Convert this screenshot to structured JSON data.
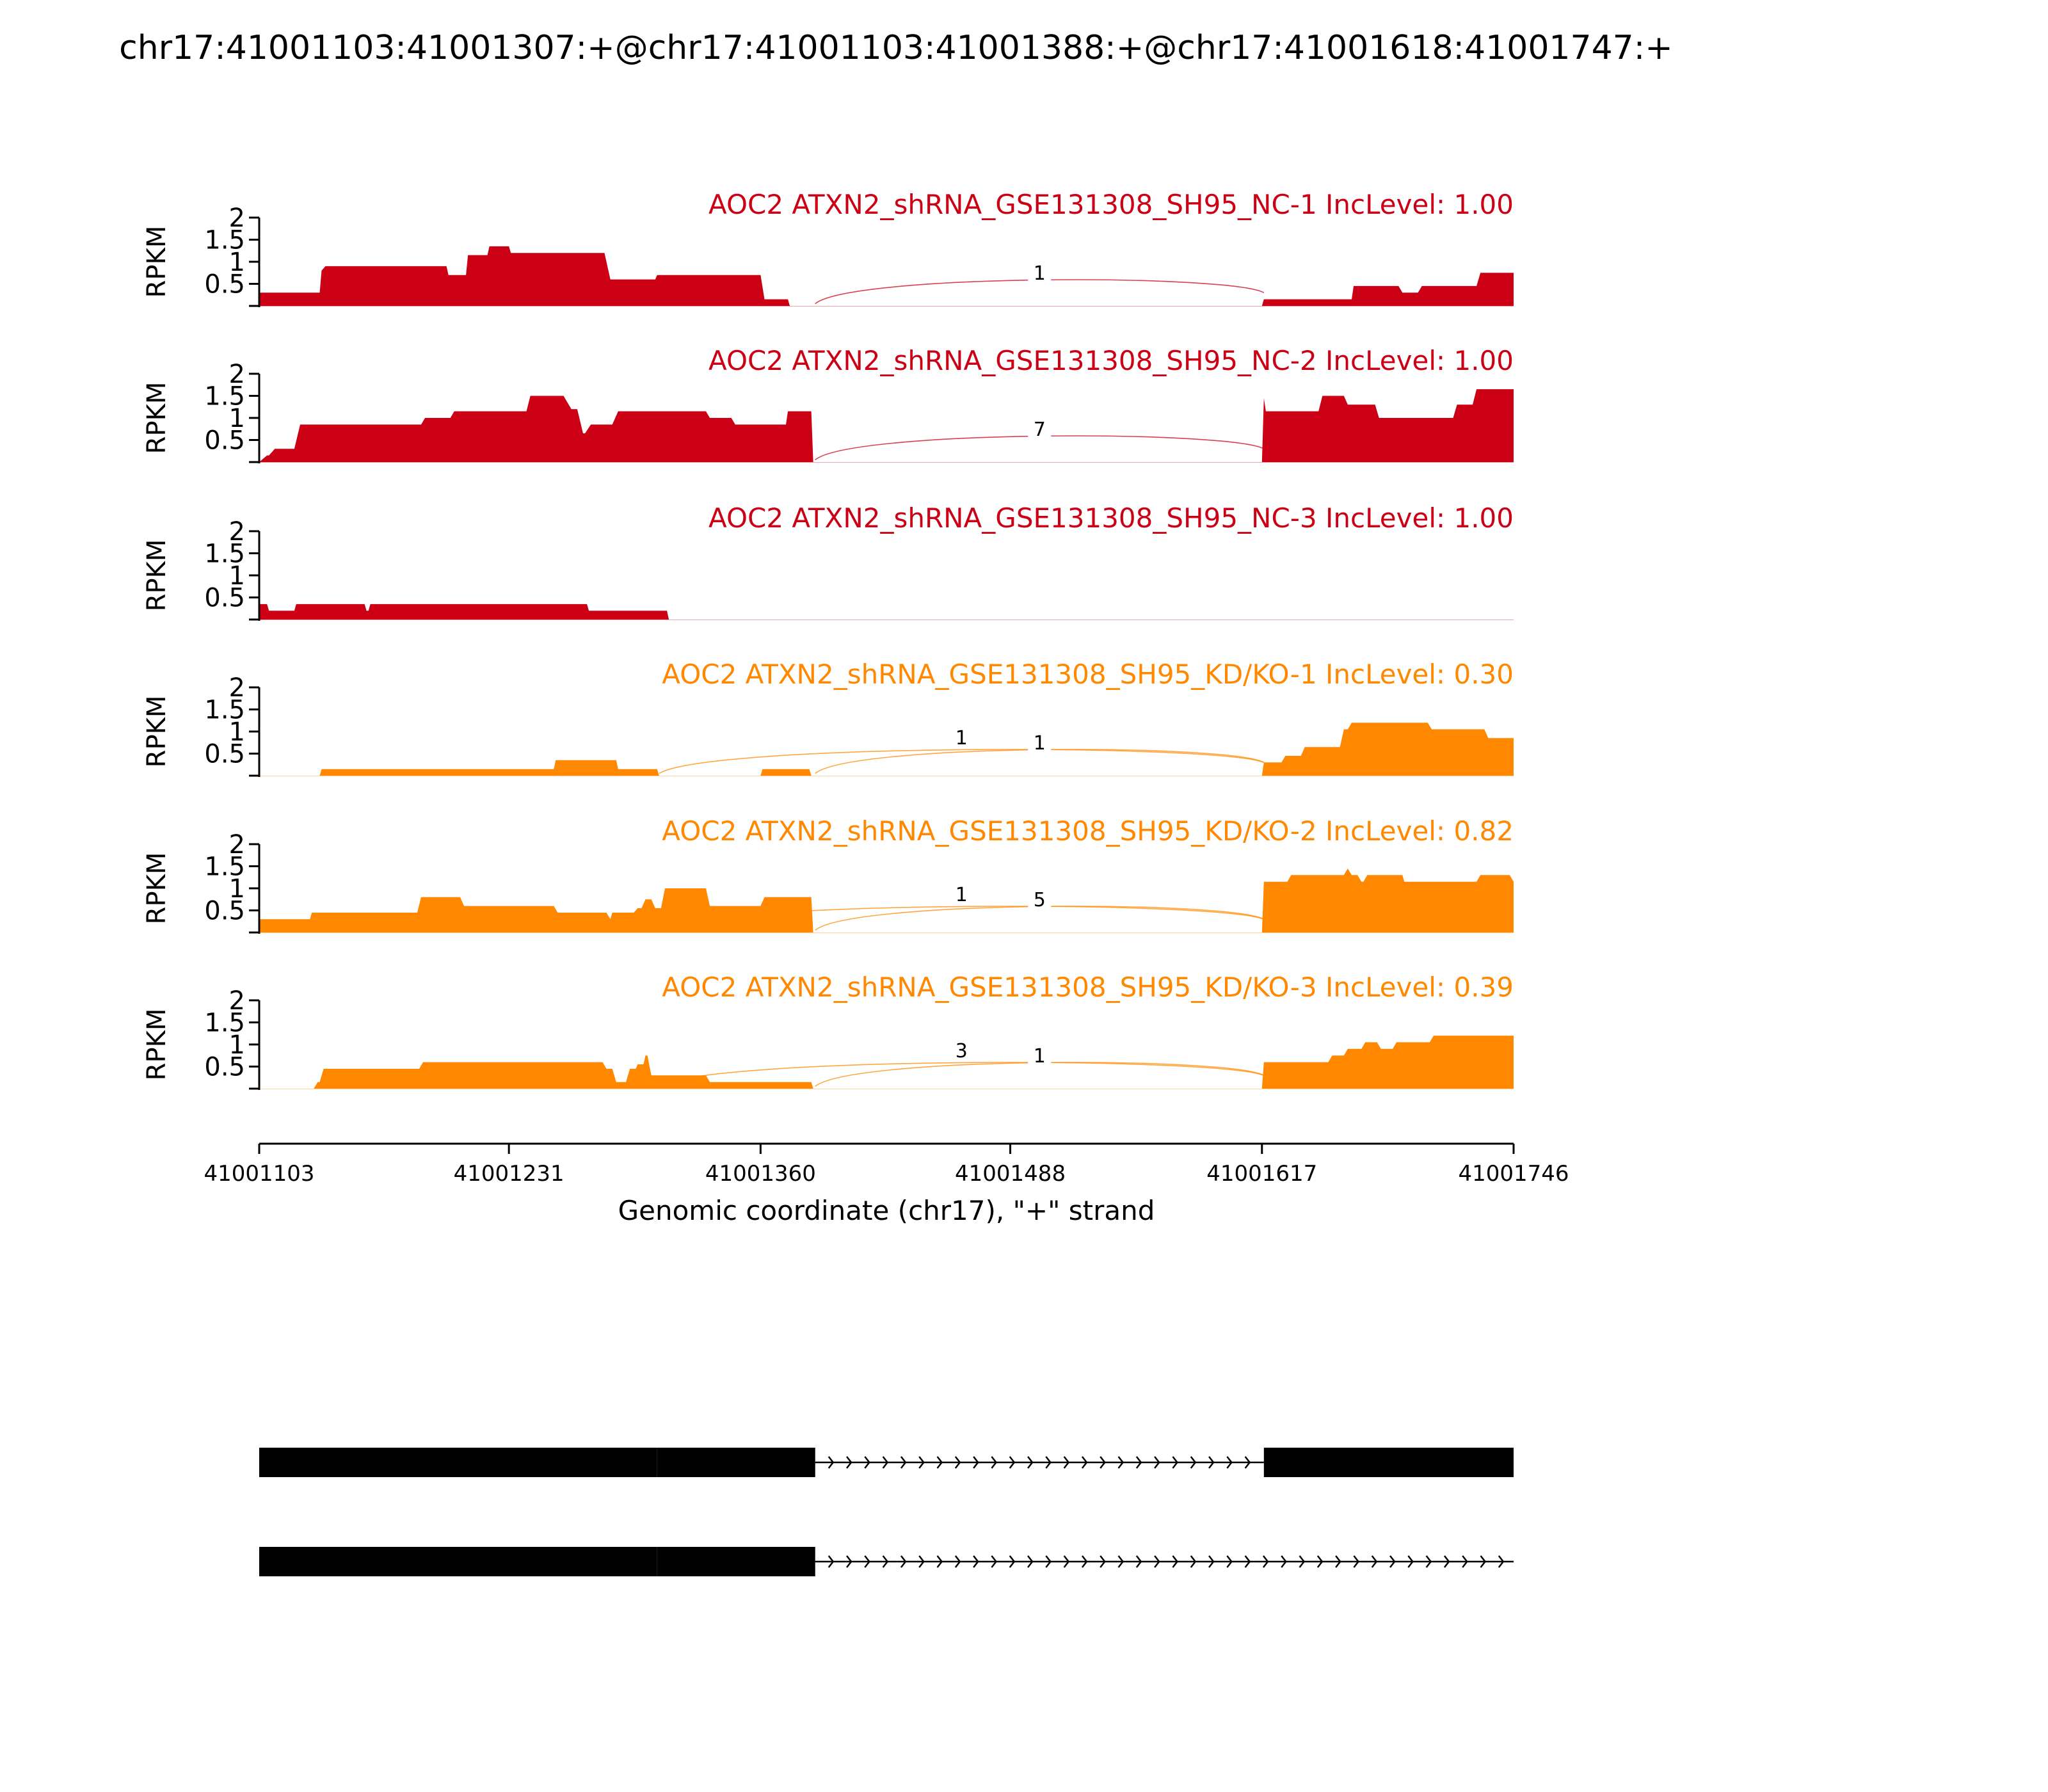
{
  "chart_data": {
    "type": "area",
    "title": "chr17:41001103:41001307:+@chr17:41001103:41001388:+@chr17:41001618:41001747:+",
    "xlabel": "Genomic coordinate (chr17), \"+\" strand",
    "ylabel": "RPKM",
    "xlim": [
      41001103,
      41001746
    ],
    "ylim": [
      0,
      2
    ],
    "xticks": [
      "41001103",
      "41001231",
      "41001360",
      "41001488",
      "41001617",
      "41001746"
    ],
    "yticks": [
      "0.5",
      "1",
      "1.5",
      "2"
    ],
    "colors": {
      "nc": "#cc0015",
      "kd": "#ff8800"
    },
    "tracks": [
      {
        "name": "AOC2 ATXN2_shRNA_GSE131308_SH95_NC-1 IncLevel: 1.00",
        "group": "nc",
        "coverage": [
          [
            41001103,
            0.3
          ],
          [
            41001134,
            0.3
          ],
          [
            41001135,
            0.8
          ],
          [
            41001137,
            0.9
          ],
          [
            41001199,
            0.9
          ],
          [
            41001200,
            0.7
          ],
          [
            41001209,
            0.7
          ],
          [
            41001210,
            1.15
          ],
          [
            41001220,
            1.15
          ],
          [
            41001221,
            1.35
          ],
          [
            41001231,
            1.35
          ],
          [
            41001232,
            1.2
          ],
          [
            41001280,
            1.2
          ],
          [
            41001283,
            0.6
          ],
          [
            41001306,
            0.6
          ],
          [
            41001307,
            0.7
          ],
          [
            41001360,
            0.7
          ],
          [
            41001362,
            0.15
          ],
          [
            41001374,
            0.15
          ],
          [
            41001375,
            0
          ],
          [
            41001617,
            0
          ],
          [
            41001618,
            0.15
          ],
          [
            41001663,
            0.15
          ],
          [
            41001664,
            0.45
          ],
          [
            41001687,
            0.45
          ],
          [
            41001689,
            0.3
          ],
          [
            41001697,
            0.3
          ],
          [
            41001699,
            0.45
          ],
          [
            41001727,
            0.45
          ],
          [
            41001729,
            0.75
          ],
          [
            41001746,
            0.75
          ]
        ],
        "junctions": [
          {
            "from": 41001388,
            "to": 41001618,
            "count": "1",
            "label_x": 41001503
          }
        ]
      },
      {
        "name": "AOC2 ATXN2_shRNA_GSE131308_SH95_NC-2 IncLevel: 1.00",
        "group": "nc",
        "coverage": [
          [
            41001103,
            0
          ],
          [
            41001107,
            0.15
          ],
          [
            41001108,
            0.15
          ],
          [
            41001111,
            0.3
          ],
          [
            41001121,
            0.3
          ],
          [
            41001124,
            0.85
          ],
          [
            41001186,
            0.85
          ],
          [
            41001188,
            1.0
          ],
          [
            41001201,
            1.0
          ],
          [
            41001203,
            1.15
          ],
          [
            41001240,
            1.15
          ],
          [
            41001242,
            1.5
          ],
          [
            41001259,
            1.5
          ],
          [
            41001263,
            1.2
          ],
          [
            41001266,
            1.2
          ],
          [
            41001269,
            0.65
          ],
          [
            41001270,
            0.65
          ],
          [
            41001273,
            0.85
          ],
          [
            41001284,
            0.85
          ],
          [
            41001287,
            1.15
          ],
          [
            41001332,
            1.15
          ],
          [
            41001334,
            1.0
          ],
          [
            41001345,
            1.0
          ],
          [
            41001347,
            0.85
          ],
          [
            41001373,
            0.85
          ],
          [
            41001374,
            1.15
          ],
          [
            41001386,
            1.15
          ],
          [
            41001387,
            0
          ],
          [
            41001617,
            0
          ],
          [
            41001618,
            1.45
          ],
          [
            41001619,
            1.15
          ],
          [
            41001646,
            1.15
          ],
          [
            41001648,
            1.5
          ],
          [
            41001659,
            1.5
          ],
          [
            41001661,
            1.3
          ],
          [
            41001675,
            1.3
          ],
          [
            41001677,
            1.0
          ],
          [
            41001715,
            1.0
          ],
          [
            41001717,
            1.3
          ],
          [
            41001725,
            1.3
          ],
          [
            41001727,
            1.65
          ],
          [
            41001746,
            1.65
          ]
        ],
        "junctions": [
          {
            "from": 41001388,
            "to": 41001618,
            "count": "7",
            "label_x": 41001503
          }
        ]
      },
      {
        "name": "AOC2 ATXN2_shRNA_GSE131308_SH95_NC-3 IncLevel: 1.00",
        "group": "nc",
        "coverage": [
          [
            41001103,
            0.35
          ],
          [
            41001107,
            0.35
          ],
          [
            41001108,
            0.2
          ],
          [
            41001121,
            0.2
          ],
          [
            41001122,
            0.35
          ],
          [
            41001157,
            0.35
          ],
          [
            41001158,
            0.2
          ],
          [
            41001159,
            0.2
          ],
          [
            41001160,
            0.35
          ],
          [
            41001271,
            0.35
          ],
          [
            41001272,
            0.2
          ],
          [
            41001312,
            0.2
          ],
          [
            41001313,
            0
          ],
          [
            41001746,
            0
          ]
        ],
        "junctions": []
      },
      {
        "name": "AOC2 ATXN2_shRNA_GSE131308_SH95_KD/KO-1 IncLevel: 0.30",
        "group": "kd",
        "coverage": [
          [
            41001103,
            0
          ],
          [
            41001134,
            0
          ],
          [
            41001135,
            0.15
          ],
          [
            41001254,
            0.15
          ],
          [
            41001255,
            0.35
          ],
          [
            41001286,
            0.35
          ],
          [
            41001287,
            0.15
          ],
          [
            41001307,
            0.15
          ],
          [
            41001308,
            0
          ],
          [
            41001360,
            0
          ],
          [
            41001361,
            0.15
          ],
          [
            41001385,
            0.15
          ],
          [
            41001386,
            0
          ],
          [
            41001617,
            0
          ],
          [
            41001618,
            0.3
          ],
          [
            41001627,
            0.3
          ],
          [
            41001629,
            0.45
          ],
          [
            41001637,
            0.45
          ],
          [
            41001639,
            0.65
          ],
          [
            41001657,
            0.65
          ],
          [
            41001659,
            1.05
          ],
          [
            41001661,
            1.05
          ],
          [
            41001663,
            1.2
          ],
          [
            41001702,
            1.2
          ],
          [
            41001704,
            1.05
          ],
          [
            41001731,
            1.05
          ],
          [
            41001733,
            0.85
          ],
          [
            41001746,
            0.85
          ]
        ],
        "junctions": [
          {
            "from": 41001308,
            "to": 41001618,
            "count": "1",
            "label_x": 41001463
          },
          {
            "from": 41001388,
            "to": 41001618,
            "count": "1",
            "label_x": 41001503
          }
        ]
      },
      {
        "name": "AOC2 ATXN2_shRNA_GSE131308_SH95_KD/KO-2 IncLevel: 0.82",
        "group": "kd",
        "coverage": [
          [
            41001103,
            0.3
          ],
          [
            41001129,
            0.3
          ],
          [
            41001130,
            0.45
          ],
          [
            41001184,
            0.45
          ],
          [
            41001186,
            0.8
          ],
          [
            41001206,
            0.8
          ],
          [
            41001208,
            0.6
          ],
          [
            41001254,
            0.6
          ],
          [
            41001256,
            0.45
          ],
          [
            41001281,
            0.45
          ],
          [
            41001283,
            0.3
          ],
          [
            41001284,
            0.45
          ],
          [
            41001295,
            0.45
          ],
          [
            41001297,
            0.55
          ],
          [
            41001299,
            0.55
          ],
          [
            41001301,
            0.75
          ],
          [
            41001304,
            0.75
          ],
          [
            41001306,
            0.55
          ],
          [
            41001309,
            0.55
          ],
          [
            41001311,
            1.0
          ],
          [
            41001332,
            1.0
          ],
          [
            41001334,
            0.6
          ],
          [
            41001360,
            0.6
          ],
          [
            41001362,
            0.8
          ],
          [
            41001386,
            0.8
          ],
          [
            41001387,
            0
          ],
          [
            41001617,
            0
          ],
          [
            41001618,
            1.15
          ],
          [
            41001630,
            1.15
          ],
          [
            41001632,
            1.3
          ],
          [
            41001659,
            1.3
          ],
          [
            41001661,
            1.45
          ],
          [
            41001663,
            1.3
          ],
          [
            41001666,
            1.3
          ],
          [
            41001668,
            1.15
          ],
          [
            41001669,
            1.15
          ],
          [
            41001671,
            1.3
          ],
          [
            41001689,
            1.3
          ],
          [
            41001690,
            1.15
          ],
          [
            41001727,
            1.15
          ],
          [
            41001729,
            1.3
          ],
          [
            41001744,
            1.3
          ],
          [
            41001746,
            1.15
          ]
        ],
        "junctions": [
          {
            "from": 41001308,
            "to": 41001618,
            "count": "1",
            "label_x": 41001463
          },
          {
            "from": 41001388,
            "to": 41001618,
            "count": "5",
            "label_x": 41001503
          }
        ]
      },
      {
        "name": "AOC2 ATXN2_shRNA_GSE131308_SH95_KD/KO-3 IncLevel: 0.39",
        "group": "kd",
        "coverage": [
          [
            41001103,
            0
          ],
          [
            41001131,
            0
          ],
          [
            41001133,
            0.15
          ],
          [
            41001134,
            0.15
          ],
          [
            41001136,
            0.45
          ],
          [
            41001185,
            0.45
          ],
          [
            41001187,
            0.6
          ],
          [
            41001279,
            0.6
          ],
          [
            41001281,
            0.45
          ],
          [
            41001284,
            0.45
          ],
          [
            41001286,
            0.15
          ],
          [
            41001291,
            0.15
          ],
          [
            41001293,
            0.45
          ],
          [
            41001296,
            0.45
          ],
          [
            41001297,
            0.55
          ],
          [
            41001300,
            0.55
          ],
          [
            41001301,
            0.75
          ],
          [
            41001302,
            0.75
          ],
          [
            41001304,
            0.3
          ],
          [
            41001332,
            0.3
          ],
          [
            41001334,
            0.15
          ],
          [
            41001386,
            0.15
          ],
          [
            41001387,
            0
          ],
          [
            41001617,
            0
          ],
          [
            41001618,
            0.6
          ],
          [
            41001651,
            0.6
          ],
          [
            41001653,
            0.75
          ],
          [
            41001659,
            0.75
          ],
          [
            41001661,
            0.9
          ],
          [
            41001668,
            0.9
          ],
          [
            41001670,
            1.05
          ],
          [
            41001676,
            1.05
          ],
          [
            41001678,
            0.9
          ],
          [
            41001684,
            0.9
          ],
          [
            41001686,
            1.05
          ],
          [
            41001703,
            1.05
          ],
          [
            41001705,
            1.2
          ],
          [
            41001746,
            1.2
          ]
        ],
        "junctions": [
          {
            "from": 41001308,
            "to": 41001618,
            "count": "3",
            "label_x": 41001463
          },
          {
            "from": 41001388,
            "to": 41001618,
            "count": "1",
            "label_x": 41001503
          }
        ]
      }
    ],
    "isoforms": [
      {
        "exons": [
          [
            41001103,
            41001307
          ],
          [
            41001307,
            41001388
          ],
          [
            41001618,
            41001746
          ]
        ],
        "intron": [
          41001388,
          41001618
        ]
      },
      {
        "exons": [
          [
            41001103,
            41001307
          ],
          [
            41001307,
            41001388
          ]
        ],
        "intron": [
          41001388,
          41001746
        ]
      }
    ]
  }
}
